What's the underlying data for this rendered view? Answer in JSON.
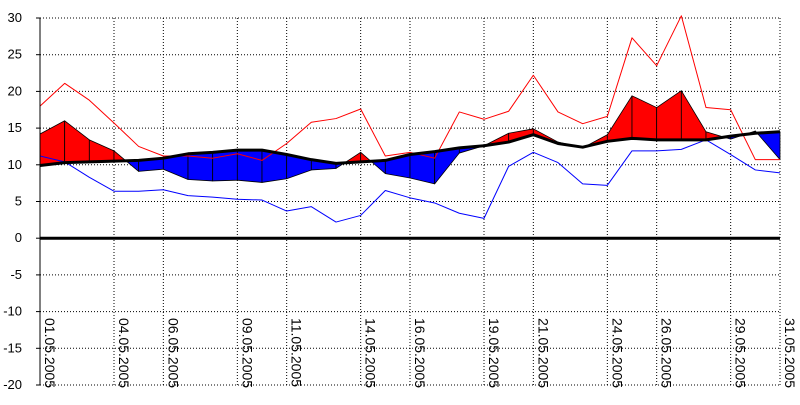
{
  "chart_data": {
    "type": "line",
    "title": "",
    "xlabel": "",
    "ylabel": "",
    "ylim": [
      -20,
      30
    ],
    "yticks": [
      30,
      25,
      20,
      15,
      10,
      5,
      0,
      -5,
      -10,
      -15,
      -20
    ],
    "grid": "dotted",
    "x_tick_labels": [
      "01.05.2005",
      "04.05.2005",
      "06.05.2005",
      "09.05.2005",
      "11.05.2005",
      "14.05.2005",
      "16.05.2005",
      "19.05.2005",
      "21.05.2005",
      "24.05.2005",
      "26.05.2005",
      "29.05.2005",
      "31.05.2005"
    ],
    "x_tick_days": [
      1,
      4,
      6,
      9,
      11,
      14,
      16,
      19,
      21,
      24,
      26,
      29,
      31
    ],
    "days": [
      1,
      2,
      3,
      4,
      5,
      6,
      7,
      8,
      9,
      10,
      11,
      12,
      13,
      14,
      15,
      16,
      17,
      18,
      19,
      20,
      21,
      22,
      23,
      24,
      25,
      26,
      27,
      28,
      29,
      30,
      31
    ],
    "series": [
      {
        "role": "max",
        "values": [
          18,
          21.1,
          18.8,
          15.7,
          12.5,
          11.2,
          11.2,
          10.9,
          11.5,
          10.6,
          12.9,
          15.8,
          16.3,
          17.6,
          11.2,
          11.7,
          10.9,
          17.2,
          16.2,
          17.3,
          22.2,
          17.2,
          15.6,
          16.6,
          27.3,
          23.5,
          30.3,
          17.8,
          17.5,
          10.7,
          10.7
        ]
      },
      {
        "role": "mean",
        "values": [
          14.2,
          16,
          13.4,
          11.9,
          9.1,
          9.4,
          8,
          7.8,
          7.9,
          7.6,
          8.1,
          9.3,
          9.5,
          11.7,
          8.8,
          8.2,
          7.4,
          11.6,
          12.6,
          14.3,
          14.9,
          13.1,
          12.3,
          14.1,
          19.4,
          17.8,
          20.1,
          14.5,
          13.5,
          14.6,
          10.7
        ]
      },
      {
        "role": "min",
        "values": [
          11.2,
          10.4,
          8.3,
          6.4,
          6.4,
          6.6,
          5.8,
          5.6,
          5.3,
          5.2,
          3.7,
          4.3,
          2.2,
          3.1,
          6.5,
          5.5,
          4.8,
          3.4,
          2.7,
          9.8,
          11.7,
          10.3,
          7.4,
          7.2,
          11.9,
          11.9,
          12.1,
          13.4,
          11.4,
          9.3,
          8.9
        ]
      },
      {
        "role": "normal",
        "values": [
          9.9,
          10.3,
          10.4,
          10.5,
          10.6,
          10.9,
          11.5,
          11.7,
          12,
          12,
          11.4,
          10.7,
          10.2,
          10.4,
          10.6,
          11.4,
          11.8,
          12.3,
          12.6,
          13.1,
          14.1,
          12.9,
          12.4,
          13.2,
          13.6,
          13.4,
          13.4,
          13.4,
          13.9,
          14.3,
          14.5
        ]
      }
    ],
    "colors": {
      "above_fill": "#ff0000",
      "below_fill": "#0000ff",
      "max_line": "#ff0000",
      "min_line": "#0000ff",
      "normal_line": "#000000",
      "zero_line": "#000000",
      "grid": "#000000"
    }
  }
}
